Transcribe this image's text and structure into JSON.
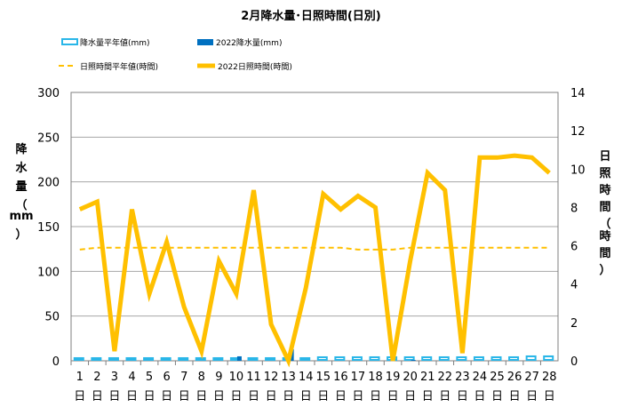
{
  "chart_data": {
    "type": "bar+line",
    "title": "2月降水量･日照時間(日別)",
    "categories": [
      "1",
      "2",
      "3",
      "4",
      "5",
      "6",
      "7",
      "8",
      "9",
      "10",
      "11",
      "12",
      "13",
      "14",
      "15",
      "16",
      "17",
      "18",
      "19",
      "20",
      "21",
      "22",
      "23",
      "24",
      "25",
      "26",
      "27",
      "28"
    ],
    "day_suffix": "日",
    "left_axis": {
      "label_chars": [
        "降",
        "水",
        "量",
        "（",
        "mm",
        "）"
      ],
      "ylim": [
        0,
        300
      ],
      "ticks": [
        0,
        50,
        100,
        150,
        200,
        250,
        300
      ]
    },
    "right_axis": {
      "label_chars": [
        "日",
        "照",
        "時",
        "間",
        "（",
        "時",
        "間",
        "）"
      ],
      "ylim": [
        0,
        14
      ],
      "ticks": [
        0,
        2,
        4,
        6,
        8,
        10,
        12,
        14
      ]
    },
    "legend_position": "top",
    "grid": "horizontal",
    "series": [
      {
        "name": "降水量平年値(mm)",
        "kind": "bar",
        "axis": "left",
        "style": "outline",
        "color": "#29b6e8",
        "values": [
          2,
          2,
          2,
          2,
          2,
          2,
          2,
          2,
          2,
          2,
          2,
          2,
          2,
          2,
          3,
          3,
          3,
          3,
          3,
          3,
          3,
          3,
          3,
          3,
          3,
          3,
          4,
          4
        ]
      },
      {
        "name": "2022降水量(mm)",
        "kind": "bar",
        "axis": "left",
        "style": "filled",
        "color": "#0070c0",
        "values": [
          0,
          0,
          0,
          0,
          0,
          0,
          0,
          0,
          0,
          5,
          0,
          0,
          13,
          0,
          0,
          0,
          0,
          0,
          0,
          1,
          0,
          0,
          0,
          0,
          0,
          0,
          0,
          0
        ]
      },
      {
        "name": "日照時間平年値(時間)",
        "kind": "line",
        "axis": "right",
        "style": "dashed",
        "color": "#ffc000",
        "values": [
          5.8,
          5.9,
          5.9,
          5.9,
          5.9,
          5.9,
          5.9,
          5.9,
          5.9,
          5.9,
          5.9,
          5.9,
          5.9,
          5.9,
          5.9,
          5.9,
          5.8,
          5.8,
          5.8,
          5.9,
          5.9,
          5.9,
          5.9,
          5.9,
          5.9,
          5.9,
          5.9,
          5.9
        ]
      },
      {
        "name": "2022日照時間(時間)",
        "kind": "line",
        "axis": "right",
        "style": "solid",
        "color": "#ffc000",
        "values": [
          7.9,
          8.3,
          0.5,
          7.9,
          3.5,
          6.2,
          2.8,
          0.5,
          5.2,
          3.5,
          8.9,
          1.9,
          0.0,
          3.8,
          8.7,
          7.9,
          8.6,
          8.0,
          0.0,
          5.2,
          9.8,
          8.9,
          0.4,
          10.6,
          10.6,
          10.7,
          10.6,
          9.8
        ]
      }
    ]
  }
}
